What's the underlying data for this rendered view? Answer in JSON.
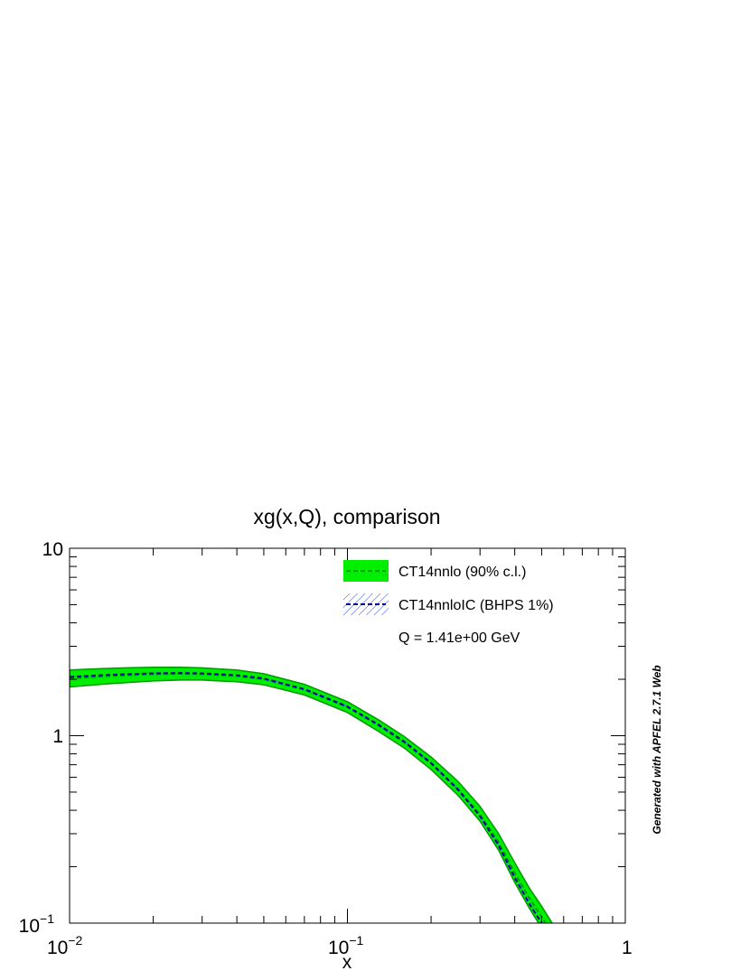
{
  "chart_data": {
    "type": "line",
    "title": "xg(x,Q), comparison",
    "xlabel": "x",
    "ylabel": "",
    "xscale": "log",
    "yscale": "log",
    "xlim": [
      0.01,
      1
    ],
    "ylim": [
      0.1,
      10
    ],
    "x_ticks": [
      {
        "base": "10",
        "exp": "−2"
      },
      {
        "base": "10",
        "exp": "−1"
      },
      {
        "base": "1",
        "exp": ""
      }
    ],
    "y_ticks": [
      {
        "base": "10",
        "exp": ""
      },
      {
        "base": "1",
        "exp": ""
      },
      {
        "base": "10",
        "exp": "−1"
      }
    ],
    "x": [
      0.01,
      0.013,
      0.016,
      0.02,
      0.025,
      0.03,
      0.04,
      0.05,
      0.07,
      0.1,
      0.13,
      0.16,
      0.2,
      0.25,
      0.3,
      0.35,
      0.4,
      0.45,
      0.5,
      0.55
    ],
    "series": [
      {
        "name": "CT14nnlo (90% c.l.)",
        "style": "band",
        "color": "#00ee00",
        "edge_color": "#009900",
        "line_style": "dashed",
        "central": [
          2.02,
          2.07,
          2.1,
          2.13,
          2.14,
          2.13,
          2.08,
          2.0,
          1.76,
          1.42,
          1.13,
          0.92,
          0.71,
          0.52,
          0.38,
          0.27,
          0.185,
          0.137,
          0.108,
          0.086
        ],
        "upper": [
          2.24,
          2.28,
          2.3,
          2.32,
          2.32,
          2.3,
          2.24,
          2.14,
          1.88,
          1.52,
          1.21,
          0.99,
          0.77,
          0.57,
          0.42,
          0.3,
          0.21,
          0.155,
          0.123,
          0.098
        ],
        "lower": [
          1.82,
          1.88,
          1.92,
          1.96,
          1.98,
          1.98,
          1.94,
          1.87,
          1.65,
          1.33,
          1.05,
          0.86,
          0.66,
          0.48,
          0.35,
          0.245,
          0.165,
          0.121,
          0.094,
          0.074
        ]
      },
      {
        "name": "CT14nnloIC (BHPS 1%)",
        "style": "hatched-band",
        "color": "#0000aa",
        "hatch_color": "#3b58ff",
        "line_style": "dashed",
        "central": [
          2.06,
          2.1,
          2.13,
          2.15,
          2.16,
          2.15,
          2.1,
          2.02,
          1.77,
          1.43,
          1.14,
          0.93,
          0.715,
          0.515,
          0.372,
          0.26,
          0.175,
          0.128,
          0.1,
          0.08
        ],
        "upper": [
          2.1,
          2.14,
          2.17,
          2.19,
          2.2,
          2.19,
          2.14,
          2.06,
          1.81,
          1.46,
          1.16,
          0.95,
          0.73,
          0.527,
          0.383,
          0.268,
          0.181,
          0.133,
          0.104,
          0.083
        ],
        "lower": [
          2.02,
          2.06,
          2.09,
          2.11,
          2.12,
          2.11,
          2.06,
          1.98,
          1.73,
          1.4,
          1.12,
          0.91,
          0.7,
          0.503,
          0.361,
          0.252,
          0.169,
          0.123,
          0.096,
          0.077
        ]
      }
    ],
    "legend": {
      "position": "top-right",
      "entries": [
        "CT14nnlo (90% c.l.)",
        "CT14nnloIC (BHPS 1%)"
      ],
      "note": "Q = 1.41e+00 GeV"
    },
    "grid": false,
    "credit": "Generated with APFEL 2.7.1 Web"
  }
}
